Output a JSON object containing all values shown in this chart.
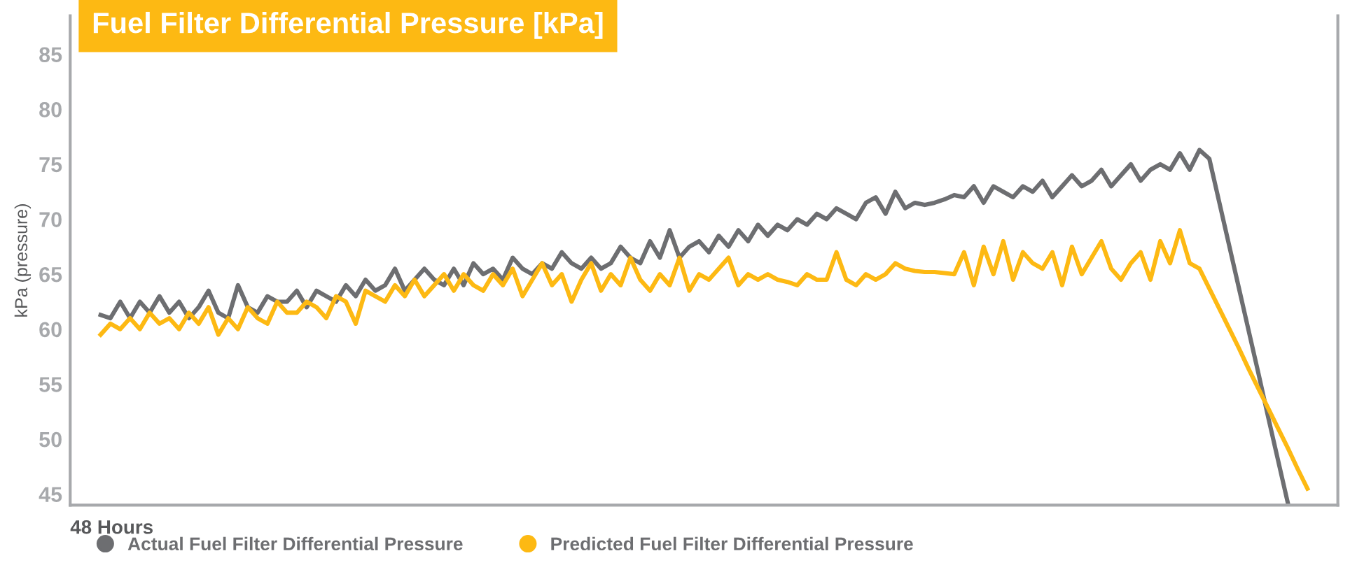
{
  "chart_data": {
    "type": "line",
    "title": "Fuel Filter Differential Pressure [kPa]",
    "xlabel": "48 Hours",
    "ylabel": "kPa (pressure)",
    "categories": [
      null,
      null,
      null,
      null,
      null,
      null,
      null,
      null,
      null,
      null,
      null,
      null,
      null,
      null,
      null,
      null,
      null,
      null,
      null,
      null,
      null,
      null,
      null,
      null,
      null,
      null,
      null,
      null,
      null,
      null,
      null,
      null,
      null,
      null,
      null,
      null,
      null,
      null,
      null,
      null,
      null,
      null,
      null,
      null,
      null,
      null,
      null,
      null,
      null,
      null,
      null,
      null,
      null,
      null,
      null,
      null,
      null,
      null,
      null,
      null,
      null,
      null,
      null,
      null,
      null,
      null,
      null,
      null,
      null,
      null,
      null,
      null,
      null,
      null,
      null,
      null,
      null,
      null,
      null,
      null,
      null,
      null,
      null,
      null,
      null,
      null,
      null,
      null,
      null,
      null,
      null,
      null,
      null,
      null,
      null,
      null,
      null,
      null,
      null,
      null,
      null,
      null,
      null,
      null,
      null,
      null,
      null,
      null,
      null,
      null,
      null,
      null,
      null,
      null,
      null,
      null,
      null,
      null,
      null,
      null,
      null,
      null,
      null,
      null
    ],
    "ylim": [
      44,
      88.5
    ],
    "yticks": [
      45,
      50,
      55,
      60,
      65,
      70,
      75,
      80,
      85
    ],
    "grid": false,
    "legend": "bottom",
    "marker": "none",
    "line_style": "solid",
    "series": [
      {
        "name": "Actual Fuel Filter Differential Pressure",
        "color": "#6d6e71",
        "values": [
          61.3,
          61,
          62.5,
          61,
          62.5,
          61.5,
          63,
          61.5,
          62.5,
          61,
          62,
          63.5,
          61.5,
          61,
          64,
          62,
          61.5,
          63,
          62.5,
          62.5,
          63.5,
          62,
          63.5,
          63,
          62.5,
          64,
          63,
          64.5,
          63.5,
          64,
          65.5,
          63.5,
          64.5,
          65.5,
          64.5,
          64,
          65.5,
          64,
          66,
          65,
          65.5,
          64.5,
          66.5,
          65.5,
          65,
          66,
          65.5,
          67,
          66,
          65.5,
          66.5,
          65.5,
          66,
          67.5,
          66.5,
          66,
          68,
          66.5,
          69,
          66.5,
          67.5,
          68,
          67,
          68.5,
          67.5,
          69,
          68,
          69.5,
          68.5,
          69.5,
          69,
          70,
          69.5,
          70.5,
          70,
          71,
          70.5,
          70,
          71.5,
          72,
          70.5,
          72.5,
          71,
          71.5,
          71.3,
          71.5,
          71.8,
          72.2,
          72,
          73,
          71.5,
          73,
          72.5,
          72,
          73,
          72.5,
          73.5,
          72,
          73,
          74,
          73,
          73.5,
          74.5,
          73,
          74,
          75,
          73.5,
          74.5,
          75,
          74.5,
          76,
          74.5,
          76.3,
          75.5,
          71.6,
          67.7,
          63.8,
          59.9,
          56,
          52,
          48.1,
          44.2,
          null,
          null
        ]
      },
      {
        "name": "Predicted Fuel Filter Differential Pressure",
        "color": "#fdb913",
        "values": [
          59.5,
          60.5,
          60,
          61,
          60,
          61.5,
          60.5,
          61,
          60,
          61.5,
          60.5,
          62,
          59.5,
          61,
          60,
          62,
          61,
          60.5,
          62.5,
          61.5,
          61.5,
          62.5,
          62,
          61,
          63,
          62.5,
          60.5,
          63.5,
          63,
          62.5,
          64,
          63,
          64.5,
          63,
          64,
          65,
          63.5,
          65,
          64,
          63.5,
          65,
          64,
          65.5,
          63,
          64.5,
          66,
          64,
          65,
          62.5,
          64.5,
          66,
          63.5,
          65,
          64,
          66.5,
          64.5,
          63.5,
          65,
          64,
          66.5,
          63.5,
          65,
          64.5,
          65.5,
          66.5,
          64,
          65,
          64.5,
          65,
          64.5,
          64.3,
          64,
          65,
          64.5,
          64.5,
          67,
          64.5,
          64,
          65,
          64.5,
          65,
          66,
          65.5,
          65.3,
          65.2,
          65.2,
          65.1,
          65,
          67,
          64,
          67.5,
          65,
          68,
          64.5,
          67,
          66,
          65.5,
          67,
          64,
          67.5,
          65,
          66.5,
          68,
          65.5,
          64.5,
          66,
          67,
          64.5,
          68,
          66,
          69,
          66,
          65.5,
          63.7,
          61.9,
          60.1,
          58.3,
          56.4,
          54.6,
          52.8,
          51,
          49.2,
          47.3,
          45.5
        ]
      }
    ]
  }
}
